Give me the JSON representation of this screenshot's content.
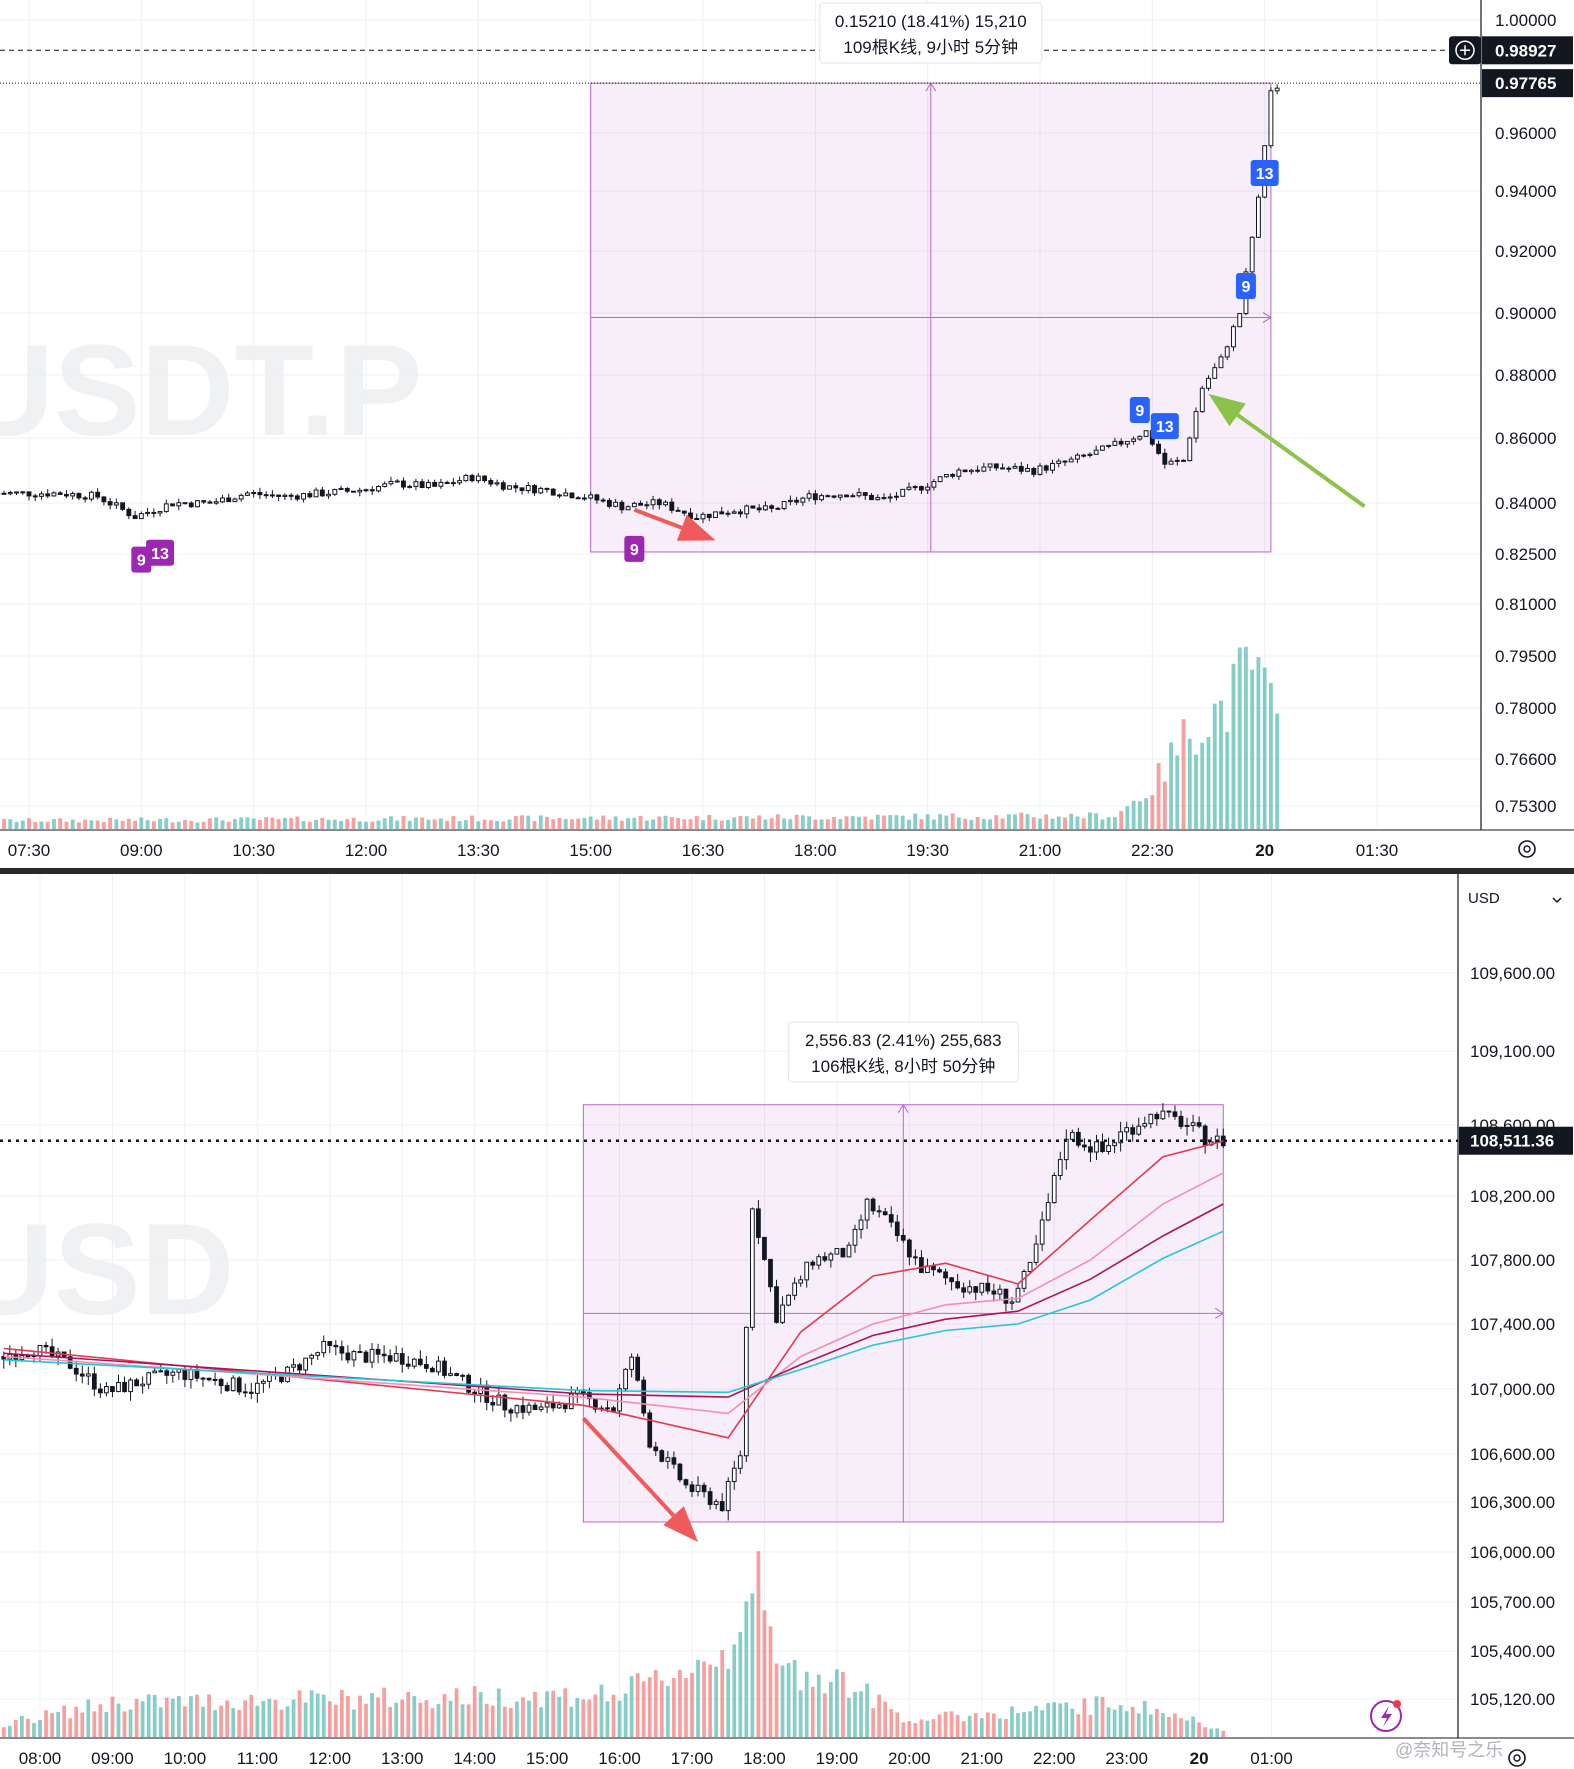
{
  "chart_data": [
    {
      "type": "candlestick",
      "watermark": "USDT.P",
      "y_ticks": [
        "1.00000",
        "0.96000",
        "0.94000",
        "0.92000",
        "0.90000",
        "0.88000",
        "0.86000",
        "0.84000",
        "0.82500",
        "0.81000",
        "0.79500",
        "0.78000",
        "0.76600",
        "0.75300"
      ],
      "y_tick_values": [
        1.0,
        0.96,
        0.94,
        0.92,
        0.9,
        0.88,
        0.86,
        0.84,
        0.825,
        0.81,
        0.795,
        0.78,
        0.766,
        0.753
      ],
      "x_ticks": [
        "07:30",
        "09:00",
        "10:30",
        "12:00",
        "13:30",
        "15:00",
        "16:30",
        "18:00",
        "19:30",
        "21:00",
        "22:30",
        "20",
        "01:30"
      ],
      "price_labels": [
        {
          "text": "0.98927",
          "value": 0.98927,
          "style": "crosshair"
        },
        {
          "text": "0.97765",
          "value": 0.97765,
          "style": "last"
        }
      ],
      "measure": {
        "line1": "0.15210 (18.41%) 15,210",
        "line2": "109根K线, 9小时 5分钟",
        "from_price": 0.8256,
        "to_price": 0.97765,
        "start_time": "15:00",
        "end_time": "00:05"
      },
      "td_markers": [
        {
          "label": "9",
          "time": "09:00",
          "color": "#9c27b0",
          "position": "below"
        },
        {
          "label": "13",
          "time": "09:15",
          "color": "#9c27b0",
          "position": "below"
        },
        {
          "label": "9",
          "time": "15:35",
          "color": "#9c27b0",
          "position": "below"
        },
        {
          "label": "9",
          "time": "22:20",
          "color": "#2962ff",
          "position": "above"
        },
        {
          "label": "13",
          "time": "22:40",
          "color": "#2962ff",
          "position": "above"
        },
        {
          "label": "9",
          "time": "23:45",
          "color": "#2962ff",
          "position": "above"
        },
        {
          "label": "13",
          "time": "00:00",
          "color": "#2962ff",
          "position": "above"
        }
      ],
      "arrows": [
        {
          "color": "#f05a5a",
          "from_time": "15:35",
          "from_price": 0.838,
          "to_time": "16:40",
          "to_price": 0.829
        },
        {
          "color": "#8bc34a",
          "from_time": "01:20",
          "from_price": 0.839,
          "to_time": "23:15",
          "to_price": 0.874
        }
      ],
      "price_path": [
        [
          "07:05",
          0.843
        ],
        [
          "08:00",
          0.843
        ],
        [
          "08:30",
          0.842
        ],
        [
          "09:00",
          0.836
        ],
        [
          "09:30",
          0.84
        ],
        [
          "10:00",
          0.84
        ],
        [
          "10:30",
          0.843
        ],
        [
          "11:00",
          0.842
        ],
        [
          "11:30",
          0.843
        ],
        [
          "12:00",
          0.844
        ],
        [
          "12:30",
          0.846
        ],
        [
          "13:00",
          0.845
        ],
        [
          "13:30",
          0.848
        ],
        [
          "14:00",
          0.845
        ],
        [
          "14:30",
          0.844
        ],
        [
          "15:00",
          0.842
        ],
        [
          "15:30",
          0.839
        ],
        [
          "16:00",
          0.84
        ],
        [
          "16:30",
          0.836
        ],
        [
          "17:00",
          0.838
        ],
        [
          "17:30",
          0.838
        ],
        [
          "18:00",
          0.842
        ],
        [
          "18:30",
          0.843
        ],
        [
          "19:00",
          0.841
        ],
        [
          "19:30",
          0.845
        ],
        [
          "20:00",
          0.85
        ],
        [
          "20:30",
          0.851
        ],
        [
          "21:00",
          0.85
        ],
        [
          "21:30",
          0.853
        ],
        [
          "22:00",
          0.857
        ],
        [
          "22:30",
          0.862
        ],
        [
          "22:45",
          0.852
        ],
        [
          "23:00",
          0.853
        ],
        [
          "23:15",
          0.876
        ],
        [
          "23:30",
          0.885
        ],
        [
          "23:45",
          0.9
        ],
        [
          "00:00",
          0.937
        ],
        [
          "00:10",
          0.975
        ]
      ],
      "volume_profile": [
        [
          "07:05",
          0.05
        ],
        [
          "22:00",
          0.08
        ],
        [
          "22:30",
          0.25
        ],
        [
          "23:00",
          0.6
        ],
        [
          "23:30",
          0.75
        ],
        [
          "23:50",
          1.0
        ],
        [
          "00:10",
          0.6
        ]
      ]
    },
    {
      "type": "candlestick",
      "watermark": "USD",
      "currency_select": "USD",
      "y_ticks": [
        "109,600.00",
        "109,100.00",
        "108,600.00",
        "108,200.00",
        "107,800.00",
        "107,400.00",
        "107,000.00",
        "106,600.00",
        "106,300.00",
        "106,000.00",
        "105,700.00",
        "105,400.00",
        "105,120.00"
      ],
      "y_tick_values": [
        109600,
        109100,
        108600,
        108200,
        107800,
        107400,
        107000,
        106600,
        106300,
        106000,
        105700,
        105400,
        105120
      ],
      "x_ticks": [
        "08:00",
        "09:00",
        "10:00",
        "11:00",
        "12:00",
        "13:00",
        "14:00",
        "15:00",
        "16:00",
        "17:00",
        "18:00",
        "19:00",
        "20:00",
        "21:00",
        "22:00",
        "23:00",
        "20",
        "01:00"
      ],
      "price_labels": [
        {
          "text": "108,511.36",
          "value": 108511.36,
          "style": "last-dotted"
        }
      ],
      "measure": {
        "line1": "2,556.83 (2.41%) 255,683",
        "line2": "106根K线, 8小时 50分钟",
        "from_price": 106180,
        "to_price": 108737,
        "start_time": "15:30",
        "end_time": "00:20"
      },
      "arrows": [
        {
          "color": "#f05a5a",
          "from_time": "15:30",
          "from_price": 106820,
          "to_time": "17:05",
          "to_price": 106060
        }
      ],
      "price_path": [
        [
          "07:30",
          107200
        ],
        [
          "08:00",
          107250
        ],
        [
          "08:30",
          107150
        ],
        [
          "09:00",
          106980
        ],
        [
          "09:30",
          107050
        ],
        [
          "10:00",
          107100
        ],
        [
          "10:30",
          107050
        ],
        [
          "11:00",
          107000
        ],
        [
          "11:30",
          107100
        ],
        [
          "12:00",
          107250
        ],
        [
          "12:30",
          107200
        ],
        [
          "13:00",
          107200
        ],
        [
          "13:30",
          107150
        ],
        [
          "14:00",
          107020
        ],
        [
          "14:30",
          106900
        ],
        [
          "15:00",
          106870
        ],
        [
          "15:30",
          106950
        ],
        [
          "16:00",
          106880
        ],
        [
          "16:15",
          107200
        ],
        [
          "16:30",
          106680
        ],
        [
          "17:00",
          106400
        ],
        [
          "17:30",
          106280
        ],
        [
          "17:45",
          106600
        ],
        [
          "17:55",
          108150
        ],
        [
          "18:15",
          107450
        ],
        [
          "18:45",
          107800
        ],
        [
          "19:15",
          107850
        ],
        [
          "19:30",
          108150
        ],
        [
          "19:45",
          108050
        ],
        [
          "20:15",
          107750
        ],
        [
          "20:45",
          107650
        ],
        [
          "21:15",
          107600
        ],
        [
          "21:30",
          107550
        ],
        [
          "21:45",
          107750
        ],
        [
          "22:00",
          108150
        ],
        [
          "22:15",
          108550
        ],
        [
          "22:30",
          108500
        ],
        [
          "22:45",
          108450
        ],
        [
          "23:00",
          108550
        ],
        [
          "23:30",
          108680
        ],
        [
          "23:50",
          108620
        ],
        [
          "00:10",
          108530
        ],
        [
          "00:20",
          108510
        ]
      ],
      "moving_averages": [
        {
          "color": "#e53950",
          "path": [
            [
              "07:30",
              107250
            ],
            [
              "15:30",
              106900
            ],
            [
              "17:30",
              106700
            ],
            [
              "18:30",
              107350
            ],
            [
              "19:30",
              107700
            ],
            [
              "20:30",
              107780
            ],
            [
              "21:30",
              107650
            ],
            [
              "22:30",
              108050
            ],
            [
              "23:30",
              108420
            ],
            [
              "00:20",
              108510
            ]
          ]
        },
        {
          "color": "#f48fb1",
          "path": [
            [
              "07:30",
              107200
            ],
            [
              "15:30",
              106950
            ],
            [
              "17:30",
              106850
            ],
            [
              "18:30",
              107200
            ],
            [
              "19:30",
              107400
            ],
            [
              "20:30",
              107520
            ],
            [
              "21:30",
              107560
            ],
            [
              "22:30",
              107800
            ],
            [
              "23:30",
              108150
            ],
            [
              "00:20",
              108330
            ]
          ]
        },
        {
          "color": "#ad1457",
          "path": [
            [
              "07:30",
              107220
            ],
            [
              "15:30",
              106970
            ],
            [
              "17:30",
              106950
            ],
            [
              "18:30",
              107150
            ],
            [
              "19:30",
              107330
            ],
            [
              "20:30",
              107430
            ],
            [
              "21:30",
              107480
            ],
            [
              "22:30",
              107680
            ],
            [
              "23:30",
              107950
            ],
            [
              "00:20",
              108150
            ]
          ]
        },
        {
          "color": "#26c6da",
          "path": [
            [
              "07:30",
              107180
            ],
            [
              "15:30",
              106990
            ],
            [
              "17:30",
              106980
            ],
            [
              "18:30",
              107120
            ],
            [
              "19:30",
              107270
            ],
            [
              "20:30",
              107360
            ],
            [
              "21:30",
              107400
            ],
            [
              "22:30",
              107550
            ],
            [
              "23:30",
              107810
            ],
            [
              "00:20",
              107980
            ]
          ]
        }
      ],
      "volume_profile": [
        [
          "07:30",
          0.08
        ],
        [
          "09:00",
          0.2
        ],
        [
          "16:00",
          0.25
        ],
        [
          "17:30",
          0.5
        ],
        [
          "17:50",
          1.0
        ],
        [
          "18:10",
          0.4
        ],
        [
          "19:00",
          0.35
        ],
        [
          "20:00",
          0.1
        ],
        [
          "23:00",
          0.2
        ],
        [
          "00:20",
          0.05
        ]
      ]
    }
  ],
  "footer_logo": "@奈知号之乐"
}
